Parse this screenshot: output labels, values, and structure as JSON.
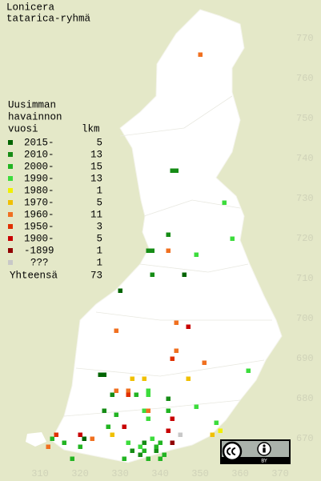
{
  "title": [
    "Lonicera",
    "tatarica-ryhmä"
  ],
  "legend": {
    "heading": [
      "Uusimman",
      "havainnon",
      "vuosi"
    ],
    "count_heading": "lkm",
    "rows": [
      {
        "label": "2015-",
        "count": 5,
        "color": "#006400",
        "cells": [
          [
            325,
            686
          ],
          [
            326,
            686
          ],
          [
            330,
            707
          ],
          [
            346,
            711
          ],
          [
            321,
            670
          ]
        ]
      },
      {
        "label": "2010-",
        "count": 13,
        "color": "#168c16",
        "cells": [
          [
            343,
            737
          ],
          [
            344,
            737
          ],
          [
            342,
            721
          ],
          [
            337,
            717
          ],
          [
            338,
            717
          ],
          [
            338,
            711
          ],
          [
            328,
            681
          ],
          [
            342,
            680
          ],
          [
            326,
            677
          ],
          [
            335,
            666
          ],
          [
            339,
            667
          ],
          [
            333,
            667
          ],
          [
            336,
            669
          ]
        ]
      },
      {
        "label": "2000-",
        "count": 15,
        "color": "#22b422",
        "cells": [
          [
            334,
            681
          ],
          [
            329,
            676
          ],
          [
            342,
            677
          ],
          [
            327,
            673
          ],
          [
            316,
            669
          ],
          [
            320,
            668
          ],
          [
            339,
            668
          ],
          [
            340,
            669
          ],
          [
            331,
            665
          ],
          [
            337,
            665
          ],
          [
            336,
            667
          ],
          [
            340,
            665
          ],
          [
            341,
            666
          ],
          [
            313,
            670
          ],
          [
            318,
            665
          ]
        ]
      },
      {
        "label": "1990-",
        "count": 13,
        "color": "#3cdc3c",
        "cells": [
          [
            356,
            729
          ],
          [
            358,
            720
          ],
          [
            349,
            716
          ],
          [
            362,
            687
          ],
          [
            337,
            681
          ],
          [
            337,
            682
          ],
          [
            336,
            677
          ],
          [
            337,
            675
          ],
          [
            354,
            674
          ],
          [
            349,
            678
          ],
          [
            335,
            668
          ],
          [
            332,
            669
          ],
          [
            338,
            670
          ]
        ]
      },
      {
        "label": "1980-",
        "count": 1,
        "color": "#f0f000",
        "cells": [
          [
            355,
            672
          ]
        ]
      },
      {
        "label": "1970-",
        "count": 5,
        "color": "#f0c000",
        "cells": [
          [
            333,
            685
          ],
          [
            336,
            685
          ],
          [
            347,
            685
          ],
          [
            328,
            671
          ],
          [
            353,
            671
          ]
        ]
      },
      {
        "label": "1960-",
        "count": 11,
        "color": "#f07020",
        "cells": [
          [
            350,
            766
          ],
          [
            342,
            717
          ],
          [
            329,
            697
          ],
          [
            344,
            699
          ],
          [
            344,
            692
          ],
          [
            351,
            689
          ],
          [
            329,
            682
          ],
          [
            332,
            682
          ],
          [
            337,
            677
          ],
          [
            312,
            668
          ],
          [
            323,
            670
          ]
        ]
      },
      {
        "label": "1950-",
        "count": 3,
        "color": "#e03000",
        "cells": [
          [
            343,
            690
          ],
          [
            332,
            681
          ],
          [
            314,
            671
          ]
        ]
      },
      {
        "label": "1900-",
        "count": 5,
        "color": "#c80000",
        "cells": [
          [
            347,
            698
          ],
          [
            331,
            673
          ],
          [
            343,
            675
          ],
          [
            320,
            671
          ],
          [
            342,
            672
          ]
        ]
      },
      {
        "label": "-1899",
        "count": 1,
        "color": "#900000",
        "cells": [
          [
            343,
            669
          ]
        ]
      },
      {
        "label": "???",
        "count": 1,
        "color": "#c8c8c8",
        "cells": [
          [
            345,
            671
          ]
        ]
      }
    ],
    "total_label": "Yhteensä",
    "total": 73
  },
  "northing_ticks": [
    770,
    760,
    750,
    740,
    730,
    720,
    710,
    700,
    690,
    680,
    670
  ],
  "easting_ticks": [
    310,
    320,
    330,
    340,
    350,
    360,
    370
  ],
  "badge": "BY"
}
